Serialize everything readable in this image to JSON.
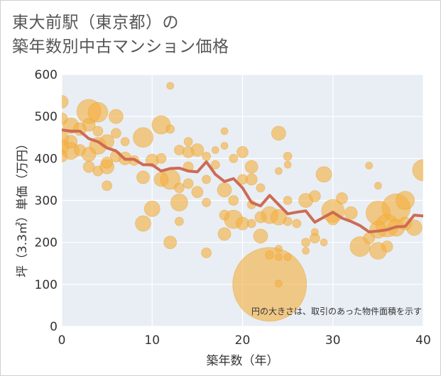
{
  "title_line1": "東大前駅（東京都）の",
  "title_line2": "築年数別中古マンション価格",
  "colors": {
    "bubble_fill": "#f5b041",
    "bubble_stroke": "#e8a13a",
    "line": "#cd6b55",
    "plot_bg": "#e8eef4",
    "grid": "#ffffff"
  },
  "chart_data": {
    "type": "scatter",
    "xlabel": "築年数（年）",
    "ylabel": "坪（3.3㎡）単価（万円）",
    "xlim": [
      0,
      40
    ],
    "ylim": [
      0,
      600
    ],
    "xticks": [
      "0",
      "10",
      "20",
      "30",
      "40"
    ],
    "yticks": [
      "0",
      "100",
      "200",
      "300",
      "400",
      "500",
      "600"
    ],
    "grid": true,
    "note": "円の大きさは、取引のあった物件面積を示す",
    "average_line": {
      "x": [
        0,
        1,
        2,
        3,
        4,
        5,
        6,
        7,
        8,
        9,
        10,
        11,
        12,
        13,
        14,
        15,
        16,
        17,
        18,
        19,
        20,
        21,
        22,
        23,
        24,
        25,
        26,
        27,
        28,
        29,
        30,
        31,
        32,
        33,
        34,
        35,
        36,
        37,
        38,
        39,
        40
      ],
      "y": [
        468,
        465,
        465,
        447,
        440,
        425,
        418,
        398,
        398,
        385,
        385,
        370,
        376,
        377,
        370,
        368,
        392,
        362,
        345,
        352,
        330,
        295,
        287,
        312,
        290,
        268,
        272,
        275,
        248,
        260,
        272,
        258,
        250,
        240,
        225,
        227,
        230,
        237,
        238,
        265,
        263
      ]
    },
    "bubbles": [
      {
        "x": 0,
        "y": 535,
        "s": 9
      },
      {
        "x": 0,
        "y": 495,
        "s": 8
      },
      {
        "x": 0,
        "y": 448,
        "s": 10
      },
      {
        "x": 0,
        "y": 428,
        "s": 10
      },
      {
        "x": 0,
        "y": 405,
        "s": 8
      },
      {
        "x": 1,
        "y": 478,
        "s": 11
      },
      {
        "x": 1,
        "y": 440,
        "s": 9
      },
      {
        "x": 1,
        "y": 418,
        "s": 12
      },
      {
        "x": 2,
        "y": 470,
        "s": 9
      },
      {
        "x": 2,
        "y": 420,
        "s": 8
      },
      {
        "x": 3,
        "y": 512,
        "s": 17
      },
      {
        "x": 3,
        "y": 480,
        "s": 9
      },
      {
        "x": 3,
        "y": 410,
        "s": 10
      },
      {
        "x": 3,
        "y": 380,
        "s": 8
      },
      {
        "x": 4,
        "y": 510,
        "s": 14
      },
      {
        "x": 4,
        "y": 465,
        "s": 7
      },
      {
        "x": 4,
        "y": 430,
        "s": 12
      },
      {
        "x": 4,
        "y": 370,
        "s": 7
      },
      {
        "x": 5,
        "y": 440,
        "s": 10
      },
      {
        "x": 5,
        "y": 390,
        "s": 8
      },
      {
        "x": 5,
        "y": 380,
        "s": 10
      },
      {
        "x": 5,
        "y": 335,
        "s": 7
      },
      {
        "x": 6,
        "y": 500,
        "s": 10
      },
      {
        "x": 6,
        "y": 460,
        "s": 7
      },
      {
        "x": 6,
        "y": 405,
        "s": 8
      },
      {
        "x": 7,
        "y": 440,
        "s": 6
      },
      {
        "x": 7,
        "y": 400,
        "s": 9
      },
      {
        "x": 8,
        "y": 395,
        "s": 7
      },
      {
        "x": 9,
        "y": 450,
        "s": 14
      },
      {
        "x": 9,
        "y": 355,
        "s": 9
      },
      {
        "x": 9,
        "y": 245,
        "s": 11
      },
      {
        "x": 10,
        "y": 395,
        "s": 9
      },
      {
        "x": 10,
        "y": 280,
        "s": 11
      },
      {
        "x": 11,
        "y": 480,
        "s": 13
      },
      {
        "x": 11,
        "y": 400,
        "s": 7
      },
      {
        "x": 11,
        "y": 350,
        "s": 10
      },
      {
        "x": 12,
        "y": 573,
        "s": 5
      },
      {
        "x": 12,
        "y": 470,
        "s": 6
      },
      {
        "x": 12,
        "y": 350,
        "s": 14
      },
      {
        "x": 12,
        "y": 200,
        "s": 9
      },
      {
        "x": 13,
        "y": 420,
        "s": 7
      },
      {
        "x": 13,
        "y": 330,
        "s": 7
      },
      {
        "x": 13,
        "y": 295,
        "s": 12
      },
      {
        "x": 13,
        "y": 250,
        "s": 6
      },
      {
        "x": 14,
        "y": 440,
        "s": 6
      },
      {
        "x": 14,
        "y": 415,
        "s": 8
      },
      {
        "x": 14,
        "y": 380,
        "s": 7
      },
      {
        "x": 14,
        "y": 340,
        "s": 7
      },
      {
        "x": 15,
        "y": 420,
        "s": 9
      },
      {
        "x": 15,
        "y": 320,
        "s": 8
      },
      {
        "x": 16,
        "y": 405,
        "s": 6
      },
      {
        "x": 16,
        "y": 350,
        "s": 6
      },
      {
        "x": 16,
        "y": 295,
        "s": 6
      },
      {
        "x": 16,
        "y": 175,
        "s": 7
      },
      {
        "x": 17,
        "y": 385,
        "s": 6
      },
      {
        "x": 17,
        "y": 420,
        "s": 5
      },
      {
        "x": 18,
        "y": 465,
        "s": 5
      },
      {
        "x": 18,
        "y": 430,
        "s": 5
      },
      {
        "x": 18,
        "y": 325,
        "s": 10
      },
      {
        "x": 18,
        "y": 265,
        "s": 7
      },
      {
        "x": 18,
        "y": 220,
        "s": 9
      },
      {
        "x": 19,
        "y": 400,
        "s": 6
      },
      {
        "x": 19,
        "y": 300,
        "s": 7
      },
      {
        "x": 19,
        "y": 255,
        "s": 13
      },
      {
        "x": 20,
        "y": 415,
        "s": 8
      },
      {
        "x": 20,
        "y": 350,
        "s": 7
      },
      {
        "x": 20,
        "y": 245,
        "s": 9
      },
      {
        "x": 21,
        "y": 380,
        "s": 9
      },
      {
        "x": 21,
        "y": 350,
        "s": 8
      },
      {
        "x": 21,
        "y": 290,
        "s": 6
      },
      {
        "x": 21,
        "y": 245,
        "s": 6
      },
      {
        "x": 22,
        "y": 330,
        "s": 6
      },
      {
        "x": 22,
        "y": 260,
        "s": 8
      },
      {
        "x": 22,
        "y": 215,
        "s": 10
      },
      {
        "x": 23,
        "y": 100,
        "s": 52
      },
      {
        "x": 23,
        "y": 265,
        "s": 12
      },
      {
        "x": 23,
        "y": 170,
        "s": 6
      },
      {
        "x": 24,
        "y": 460,
        "s": 10
      },
      {
        "x": 24,
        "y": 370,
        "s": 5
      },
      {
        "x": 24,
        "y": 260,
        "s": 11
      },
      {
        "x": 24,
        "y": 185,
        "s": 5
      },
      {
        "x": 24,
        "y": 165,
        "s": 5
      },
      {
        "x": 24,
        "y": 102,
        "s": 5
      },
      {
        "x": 25,
        "y": 405,
        "s": 6
      },
      {
        "x": 25,
        "y": 385,
        "s": 5
      },
      {
        "x": 25,
        "y": 300,
        "s": 6
      },
      {
        "x": 25,
        "y": 250,
        "s": 6
      },
      {
        "x": 25,
        "y": 165,
        "s": 5
      },
      {
        "x": 26,
        "y": 245,
        "s": 6
      },
      {
        "x": 27,
        "y": 300,
        "s": 10
      },
      {
        "x": 27,
        "y": 200,
        "s": 6
      },
      {
        "x": 27,
        "y": 180,
        "s": 5
      },
      {
        "x": 28,
        "y": 310,
        "s": 8
      },
      {
        "x": 28,
        "y": 225,
        "s": 5
      },
      {
        "x": 28,
        "y": 210,
        "s": 7
      },
      {
        "x": 29,
        "y": 362,
        "s": 11
      },
      {
        "x": 29,
        "y": 200,
        "s": 5
      },
      {
        "x": 30,
        "y": 275,
        "s": 16
      },
      {
        "x": 30,
        "y": 255,
        "s": 8
      },
      {
        "x": 31,
        "y": 305,
        "s": 8
      },
      {
        "x": 32,
        "y": 270,
        "s": 9
      },
      {
        "x": 33,
        "y": 190,
        "s": 14
      },
      {
        "x": 34,
        "y": 383,
        "s": 5
      },
      {
        "x": 34,
        "y": 210,
        "s": 8
      },
      {
        "x": 35,
        "y": 335,
        "s": 5
      },
      {
        "x": 35,
        "y": 270,
        "s": 17
      },
      {
        "x": 35,
        "y": 230,
        "s": 12
      },
      {
        "x": 35,
        "y": 180,
        "s": 12
      },
      {
        "x": 36,
        "y": 240,
        "s": 16
      },
      {
        "x": 36,
        "y": 190,
        "s": 8
      },
      {
        "x": 37,
        "y": 282,
        "s": 20
      },
      {
        "x": 37,
        "y": 235,
        "s": 12
      },
      {
        "x": 38,
        "y": 300,
        "s": 13
      },
      {
        "x": 38,
        "y": 245,
        "s": 9
      },
      {
        "x": 39,
        "y": 235,
        "s": 11
      },
      {
        "x": 40,
        "y": 372,
        "s": 15
      }
    ]
  }
}
